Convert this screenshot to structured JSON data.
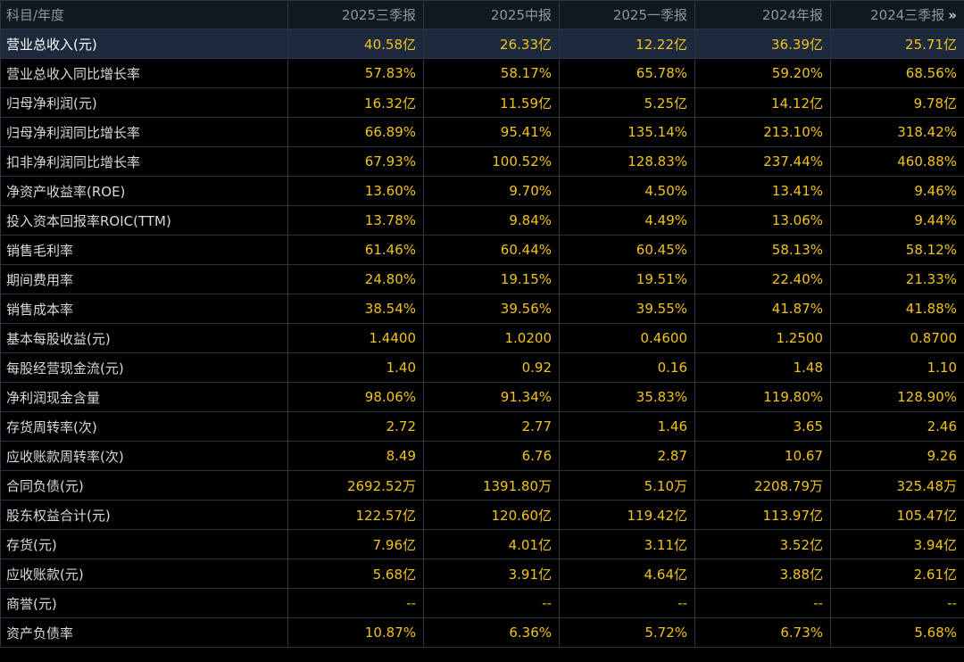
{
  "header": {
    "label": "科目/年度",
    "periods": [
      "2025三季报",
      "2025中报",
      "2025一季报",
      "2024年报",
      "2024三季报"
    ],
    "more_glyph": "»"
  },
  "rows": [
    {
      "label": "营业总收入(元)",
      "values": [
        "40.58亿",
        "26.33亿",
        "12.22亿",
        "36.39亿",
        "25.71亿"
      ]
    },
    {
      "label": "营业总收入同比增长率",
      "values": [
        "57.83%",
        "58.17%",
        "65.78%",
        "59.20%",
        "68.56%"
      ]
    },
    {
      "label": "归母净利润(元)",
      "values": [
        "16.32亿",
        "11.59亿",
        "5.25亿",
        "14.12亿",
        "9.78亿"
      ]
    },
    {
      "label": "归母净利润同比增长率",
      "values": [
        "66.89%",
        "95.41%",
        "135.14%",
        "213.10%",
        "318.42%"
      ]
    },
    {
      "label": "扣非净利润同比增长率",
      "values": [
        "67.93%",
        "100.52%",
        "128.83%",
        "237.44%",
        "460.88%"
      ]
    },
    {
      "label": "净资产收益率(ROE)",
      "values": [
        "13.60%",
        "9.70%",
        "4.50%",
        "13.41%",
        "9.46%"
      ]
    },
    {
      "label": "投入资本回报率ROIC(TTM)",
      "values": [
        "13.78%",
        "9.84%",
        "4.49%",
        "13.06%",
        "9.44%"
      ]
    },
    {
      "label": "销售毛利率",
      "values": [
        "61.46%",
        "60.44%",
        "60.45%",
        "58.13%",
        "58.12%"
      ]
    },
    {
      "label": "期间费用率",
      "values": [
        "24.80%",
        "19.15%",
        "19.51%",
        "22.40%",
        "21.33%"
      ]
    },
    {
      "label": "销售成本率",
      "values": [
        "38.54%",
        "39.56%",
        "39.55%",
        "41.87%",
        "41.88%"
      ]
    },
    {
      "label": "基本每股收益(元)",
      "values": [
        "1.4400",
        "1.0200",
        "0.4600",
        "1.2500",
        "0.8700"
      ]
    },
    {
      "label": "每股经营现金流(元)",
      "values": [
        "1.40",
        "0.92",
        "0.16",
        "1.48",
        "1.10"
      ]
    },
    {
      "label": "净利润现金含量",
      "values": [
        "98.06%",
        "91.34%",
        "35.83%",
        "119.80%",
        "128.90%"
      ]
    },
    {
      "label": "存货周转率(次)",
      "values": [
        "2.72",
        "2.77",
        "1.46",
        "3.65",
        "2.46"
      ]
    },
    {
      "label": "应收账款周转率(次)",
      "values": [
        "8.49",
        "6.76",
        "2.87",
        "10.67",
        "9.26"
      ]
    },
    {
      "label": "合同负债(元)",
      "values": [
        "2692.52万",
        "1391.80万",
        "5.10万",
        "2208.79万",
        "325.48万"
      ]
    },
    {
      "label": "股东权益合计(元)",
      "values": [
        "122.57亿",
        "120.60亿",
        "119.42亿",
        "113.97亿",
        "105.47亿"
      ]
    },
    {
      "label": "存货(元)",
      "values": [
        "7.96亿",
        "4.01亿",
        "3.11亿",
        "3.52亿",
        "3.94亿"
      ]
    },
    {
      "label": "应收账款(元)",
      "values": [
        "5.68亿",
        "3.91亿",
        "4.64亿",
        "3.88亿",
        "2.61亿"
      ]
    },
    {
      "label": "商誉(元)",
      "values": [
        "--",
        "--",
        "--",
        "--",
        "--"
      ]
    },
    {
      "label": "资产负债率",
      "values": [
        "10.87%",
        "6.36%",
        "5.72%",
        "6.73%",
        "5.68%"
      ]
    }
  ],
  "colors": {
    "background": "#000000",
    "header_background": "#121820",
    "highlight_row": "#1d2a3d",
    "value_text": "#f1c31b",
    "label_text": "#d7d9dd",
    "header_text": "#8e96a3",
    "grid_line": "#2b3442"
  }
}
